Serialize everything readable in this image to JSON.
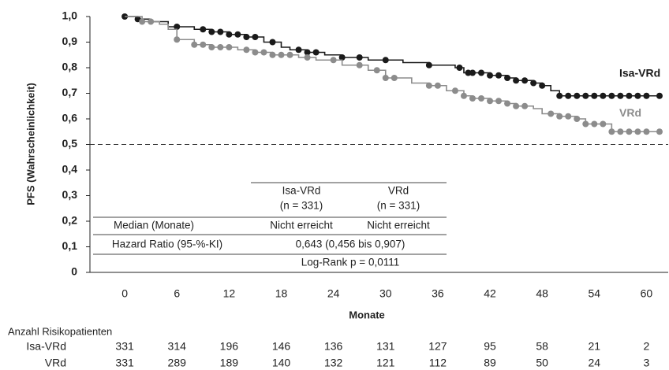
{
  "chart_data": {
    "type": "kaplan-meier",
    "ylabel": "PFS (Wahrscheinlichkeit)",
    "xlabel": "Monate",
    "xlim": [
      -4,
      62.5
    ],
    "ylim": [
      0,
      1.0
    ],
    "xticks": [
      0,
      6,
      12,
      18,
      24,
      30,
      36,
      42,
      48,
      54,
      60
    ],
    "yticks": [
      {
        "value": 0,
        "label": "0"
      },
      {
        "value": 0.1,
        "label": "0,1"
      },
      {
        "value": 0.2,
        "label": "0,2"
      },
      {
        "value": 0.3,
        "label": "0,3"
      },
      {
        "value": 0.4,
        "label": "0,4"
      },
      {
        "value": 0.5,
        "label": "0,5"
      },
      {
        "value": 0.6,
        "label": "0,6"
      },
      {
        "value": 0.7,
        "label": "0,7"
      },
      {
        "value": 0.8,
        "label": "0,8"
      },
      {
        "value": 0.9,
        "label": "0,9"
      },
      {
        "value": 1.0,
        "label": "1,0"
      }
    ],
    "reference_line": 0.5,
    "series": [
      {
        "name": "Isa-VRd",
        "color": "#1a1a1a",
        "x": [
          0,
          1.5,
          3,
          5,
          8,
          10,
          12,
          14,
          16,
          18,
          19,
          21,
          23,
          25,
          28,
          32,
          35,
          38,
          39,
          42,
          44,
          45,
          47,
          48,
          49,
          50,
          61.5
        ],
        "values": [
          1.0,
          0.99,
          0.98,
          0.96,
          0.95,
          0.94,
          0.93,
          0.92,
          0.9,
          0.88,
          0.87,
          0.86,
          0.85,
          0.84,
          0.83,
          0.82,
          0.81,
          0.8,
          0.78,
          0.77,
          0.76,
          0.75,
          0.74,
          0.73,
          0.71,
          0.69,
          0.69
        ],
        "censor_x": [
          0,
          1.5,
          6,
          9,
          10,
          11,
          12,
          13,
          14,
          15,
          17,
          20,
          21,
          22,
          25,
          27,
          30,
          35,
          38.5,
          39.5,
          40,
          41,
          42,
          43,
          44,
          45,
          46,
          47,
          48,
          50,
          51,
          52,
          53,
          54,
          55,
          56,
          57,
          58,
          59,
          60,
          61.5
        ],
        "censor_values": [
          1.0,
          0.99,
          0.96,
          0.95,
          0.94,
          0.94,
          0.93,
          0.93,
          0.92,
          0.92,
          0.9,
          0.87,
          0.86,
          0.86,
          0.84,
          0.84,
          0.83,
          0.81,
          0.8,
          0.78,
          0.78,
          0.78,
          0.77,
          0.77,
          0.76,
          0.75,
          0.75,
          0.74,
          0.73,
          0.69,
          0.69,
          0.69,
          0.69,
          0.69,
          0.69,
          0.69,
          0.69,
          0.69,
          0.69,
          0.69,
          0.69
        ]
      },
      {
        "name": "VRd",
        "color": "#8c8c8c",
        "x": [
          0,
          2,
          4,
          5,
          6,
          8,
          10,
          13,
          15,
          17,
          20,
          22,
          25,
          28,
          30,
          33,
          35,
          37,
          39,
          40,
          42,
          44,
          45,
          47,
          48,
          50,
          52,
          53,
          56,
          61.5
        ],
        "values": [
          1.0,
          0.98,
          0.97,
          0.95,
          0.91,
          0.89,
          0.88,
          0.87,
          0.86,
          0.85,
          0.84,
          0.83,
          0.81,
          0.79,
          0.76,
          0.74,
          0.73,
          0.71,
          0.69,
          0.68,
          0.67,
          0.66,
          0.65,
          0.64,
          0.62,
          0.61,
          0.6,
          0.58,
          0.55,
          0.55
        ],
        "censor_x": [
          2,
          3,
          6,
          8,
          9,
          10,
          11,
          12,
          14,
          15,
          16,
          17,
          18,
          19,
          21,
          24,
          27,
          29,
          30,
          31,
          35,
          36,
          38,
          39,
          40,
          41,
          42,
          43,
          44,
          45,
          46,
          49,
          50,
          51,
          52,
          53,
          54,
          55,
          56,
          57,
          58,
          59,
          60,
          61.5
        ],
        "censor_values": [
          0.98,
          0.98,
          0.91,
          0.89,
          0.89,
          0.88,
          0.88,
          0.88,
          0.87,
          0.86,
          0.86,
          0.85,
          0.85,
          0.85,
          0.84,
          0.83,
          0.81,
          0.79,
          0.76,
          0.76,
          0.73,
          0.73,
          0.71,
          0.69,
          0.68,
          0.68,
          0.67,
          0.67,
          0.66,
          0.65,
          0.65,
          0.62,
          0.61,
          0.61,
          0.6,
          0.58,
          0.58,
          0.58,
          0.55,
          0.55,
          0.55,
          0.55,
          0.55,
          0.55
        ]
      }
    ],
    "table": {
      "columns": [
        [
          "Isa-VRd",
          "(n = 331)"
        ],
        [
          "VRd",
          "(n = 331)"
        ]
      ],
      "median": [
        "Median (Monate)",
        "Nicht erreicht",
        "Nicht erreicht"
      ],
      "hazard": [
        "Hazard Ratio (95-%-KI)",
        "0,643 (0,456 bis 0,907)"
      ],
      "logrank": "Log-Rank p = 0,0111"
    },
    "risk_table": {
      "title": "Anzahl Risikopatienten",
      "rows": [
        {
          "name": "Isa-VRd",
          "values": [
            331,
            314,
            196,
            146,
            136,
            131,
            127,
            95,
            58,
            21,
            2
          ]
        },
        {
          "name": "VRd",
          "values": [
            331,
            289,
            189,
            140,
            132,
            121,
            112,
            89,
            50,
            24,
            3
          ]
        }
      ]
    }
  }
}
